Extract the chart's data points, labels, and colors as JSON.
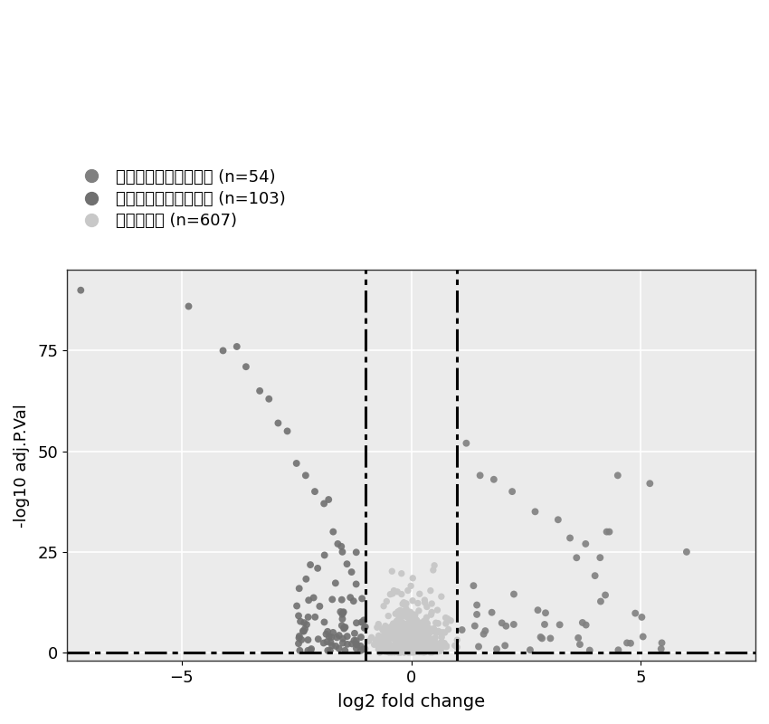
{
  "xlabel": "log2 fold change",
  "ylabel": "-log10 adj.P.Val",
  "xlim": [
    -7.5,
    7.5
  ],
  "ylim": [
    -2,
    95
  ],
  "vline_x": [
    -1,
    1
  ],
  "hline_y": 0,
  "yticks": [
    0,
    25,
    50,
    75
  ],
  "xticks": [
    -5,
    0,
    5
  ],
  "up_color": "#808080",
  "down_color": "#707070",
  "nc_color": "#c8c8c8",
  "legend_up": "在肉瘾组织上调的基因 (n=54)",
  "legend_down": "在肉瘾组织下调的基因 (n=103)",
  "legend_nc": "无变化基因 (n=607)",
  "background_color": "#ebebeb",
  "grid_color": "#ffffff",
  "seed": 42
}
